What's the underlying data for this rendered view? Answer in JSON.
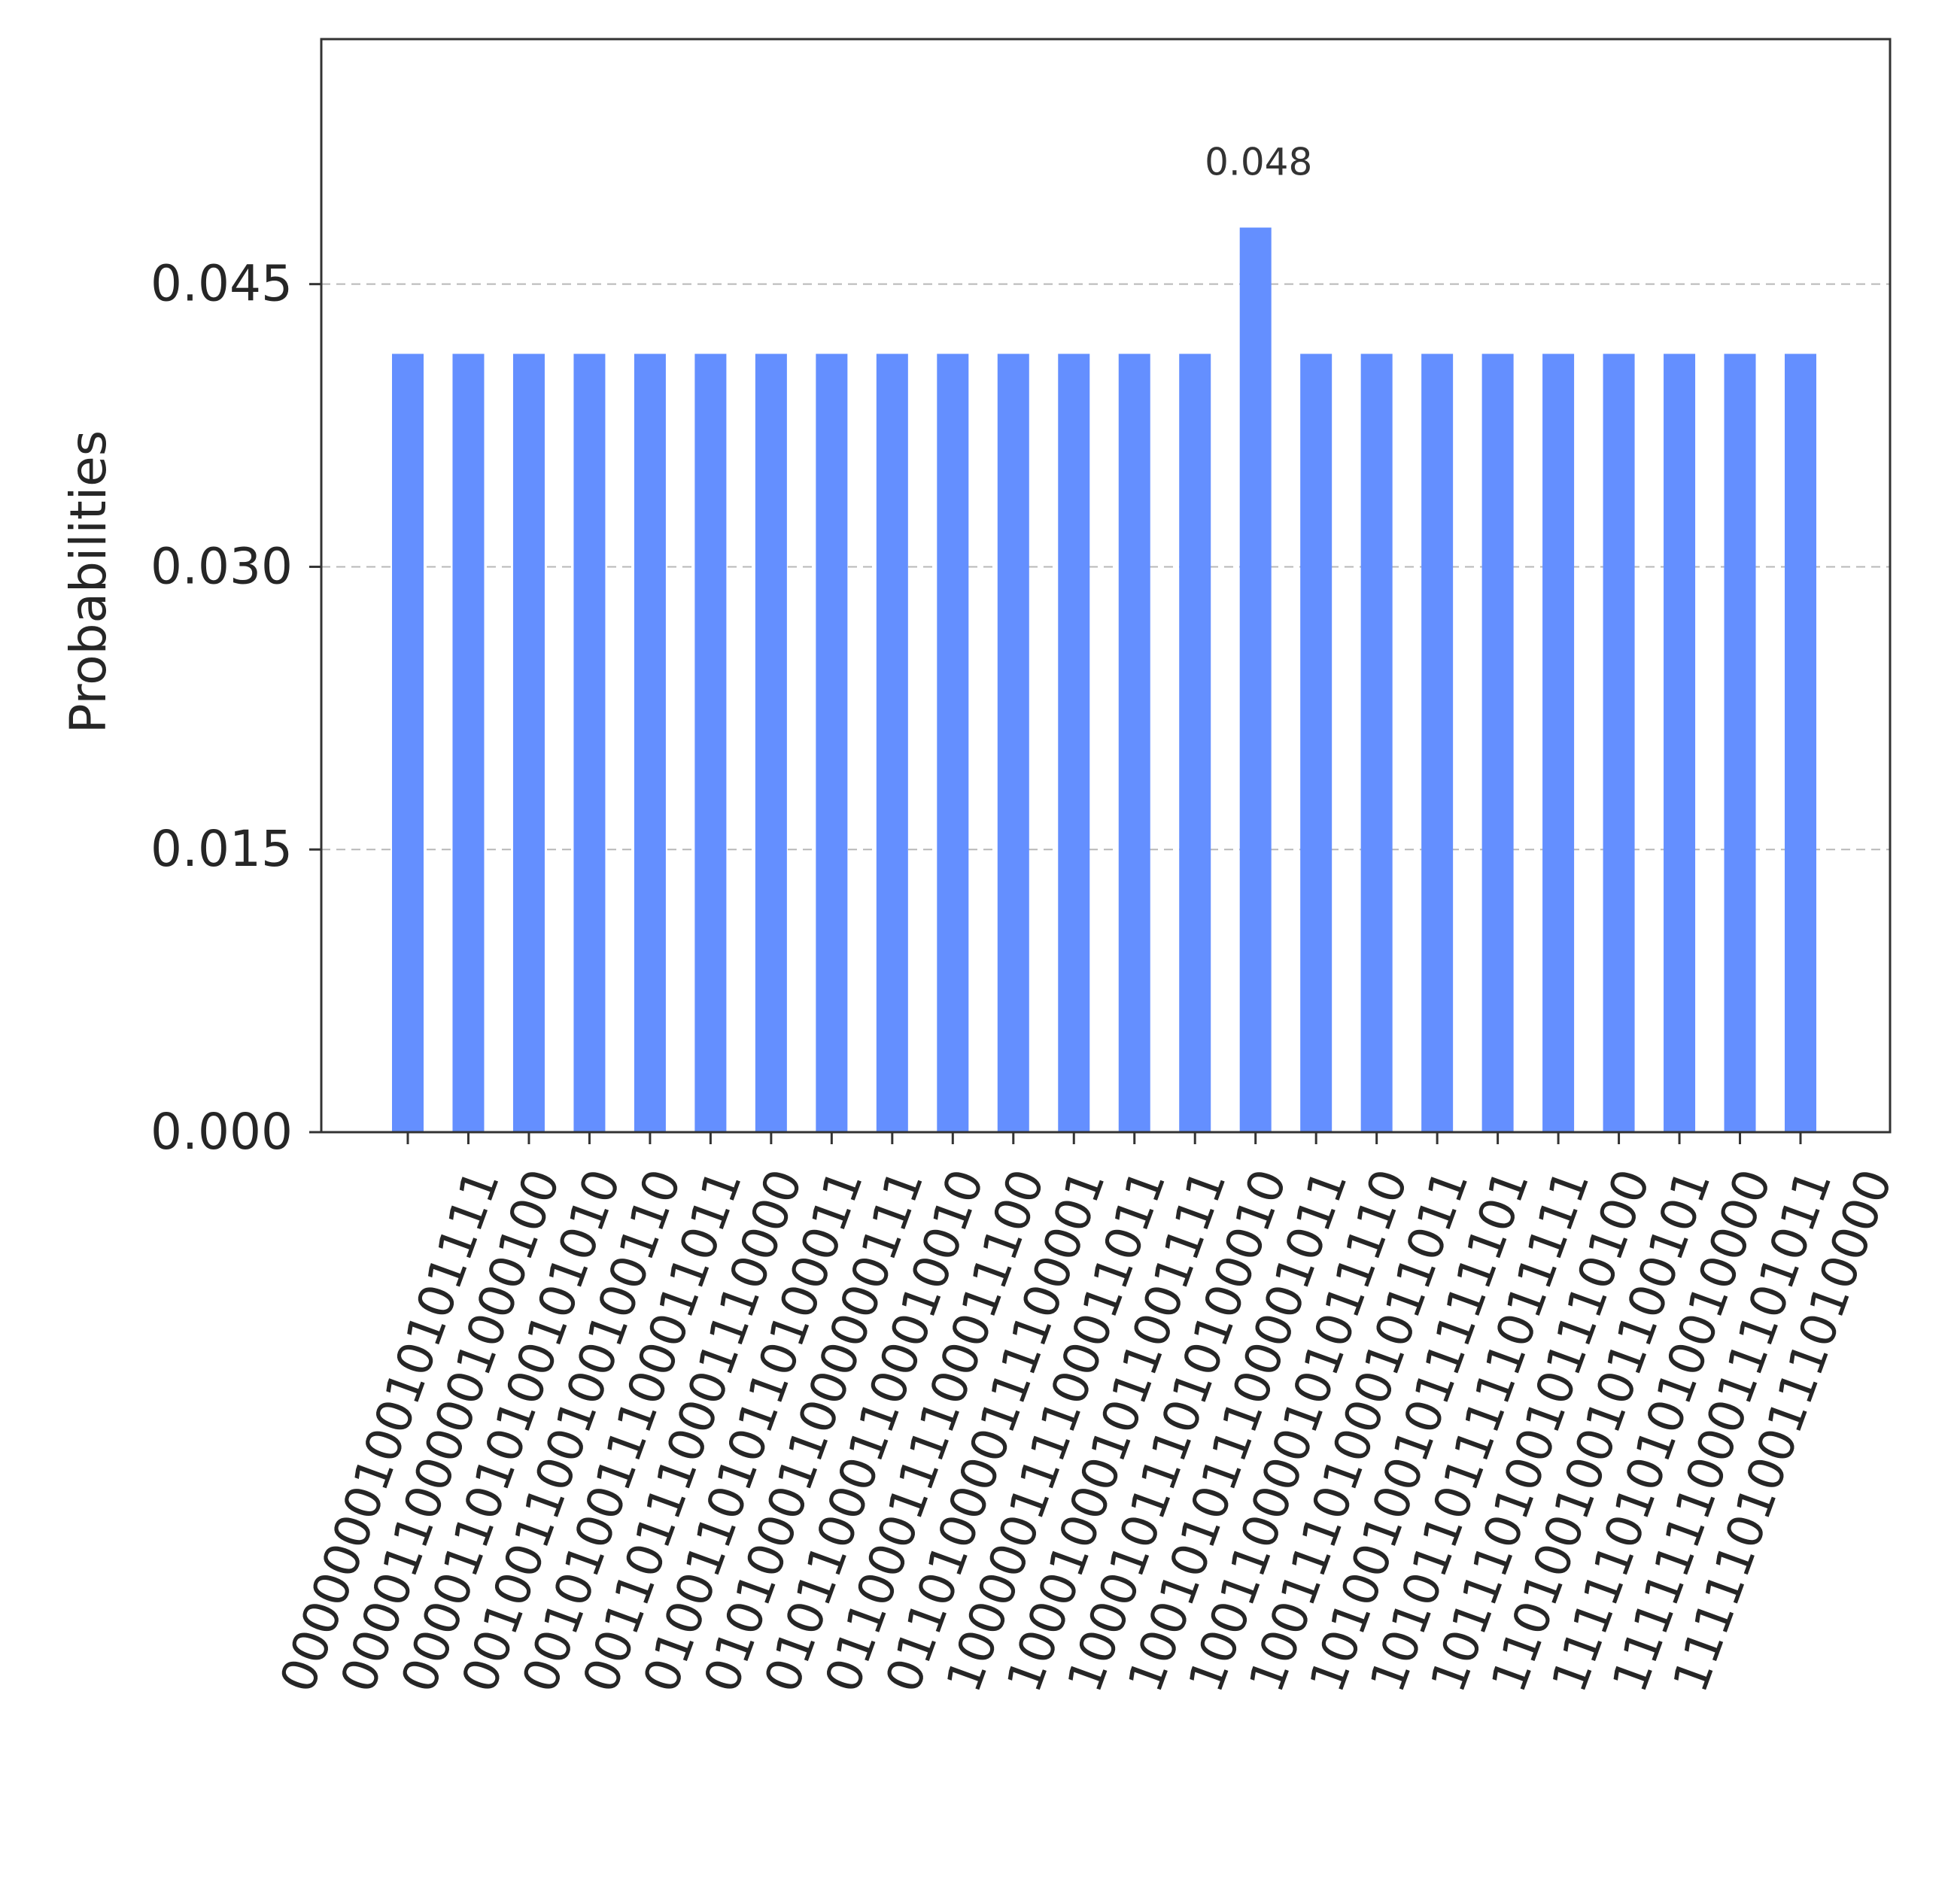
{
  "chart_data": {
    "type": "bar",
    "ylabel": "Probabilities",
    "xlabel": "",
    "ylim": [
      0,
      0.058
    ],
    "yticks": [
      0.0,
      0.015,
      0.03,
      0.045
    ],
    "ytick_labels": [
      "0.000",
      "0.015",
      "0.030",
      "0.045"
    ],
    "grid": "horizontal dashed",
    "bar_color": "#648fff",
    "categories": [
      "000000010010101111",
      "000011000001000100",
      "000011010100101010",
      "001001100100100110",
      "001010011100011011",
      "001101110001110000",
      "010011010110100011",
      "010100011000000111",
      "010110001100010010",
      "011000111100011100",
      "011010000111100001",
      "100000111100011011",
      "100010001011001111",
      "100010111010100010",
      "100101011100001011",
      "100110000101011110",
      "100111010001011011",
      "101001001011111101",
      "101011011111011111",
      "101110100101110100",
      "110100100101100101",
      "111110101010010000",
      "111111100011101011",
      "111110100111010000"
    ],
    "values": [
      0.0413,
      0.0413,
      0.0413,
      0.0413,
      0.0413,
      0.0413,
      0.0413,
      0.0413,
      0.0413,
      0.0413,
      0.0413,
      0.0413,
      0.0413,
      0.0413,
      0.048,
      0.0413,
      0.0413,
      0.0413,
      0.0413,
      0.0413,
      0.0413,
      0.0413,
      0.0413,
      0.0413
    ],
    "annotations": [
      {
        "category_index": 14,
        "text": "0.048"
      }
    ]
  }
}
